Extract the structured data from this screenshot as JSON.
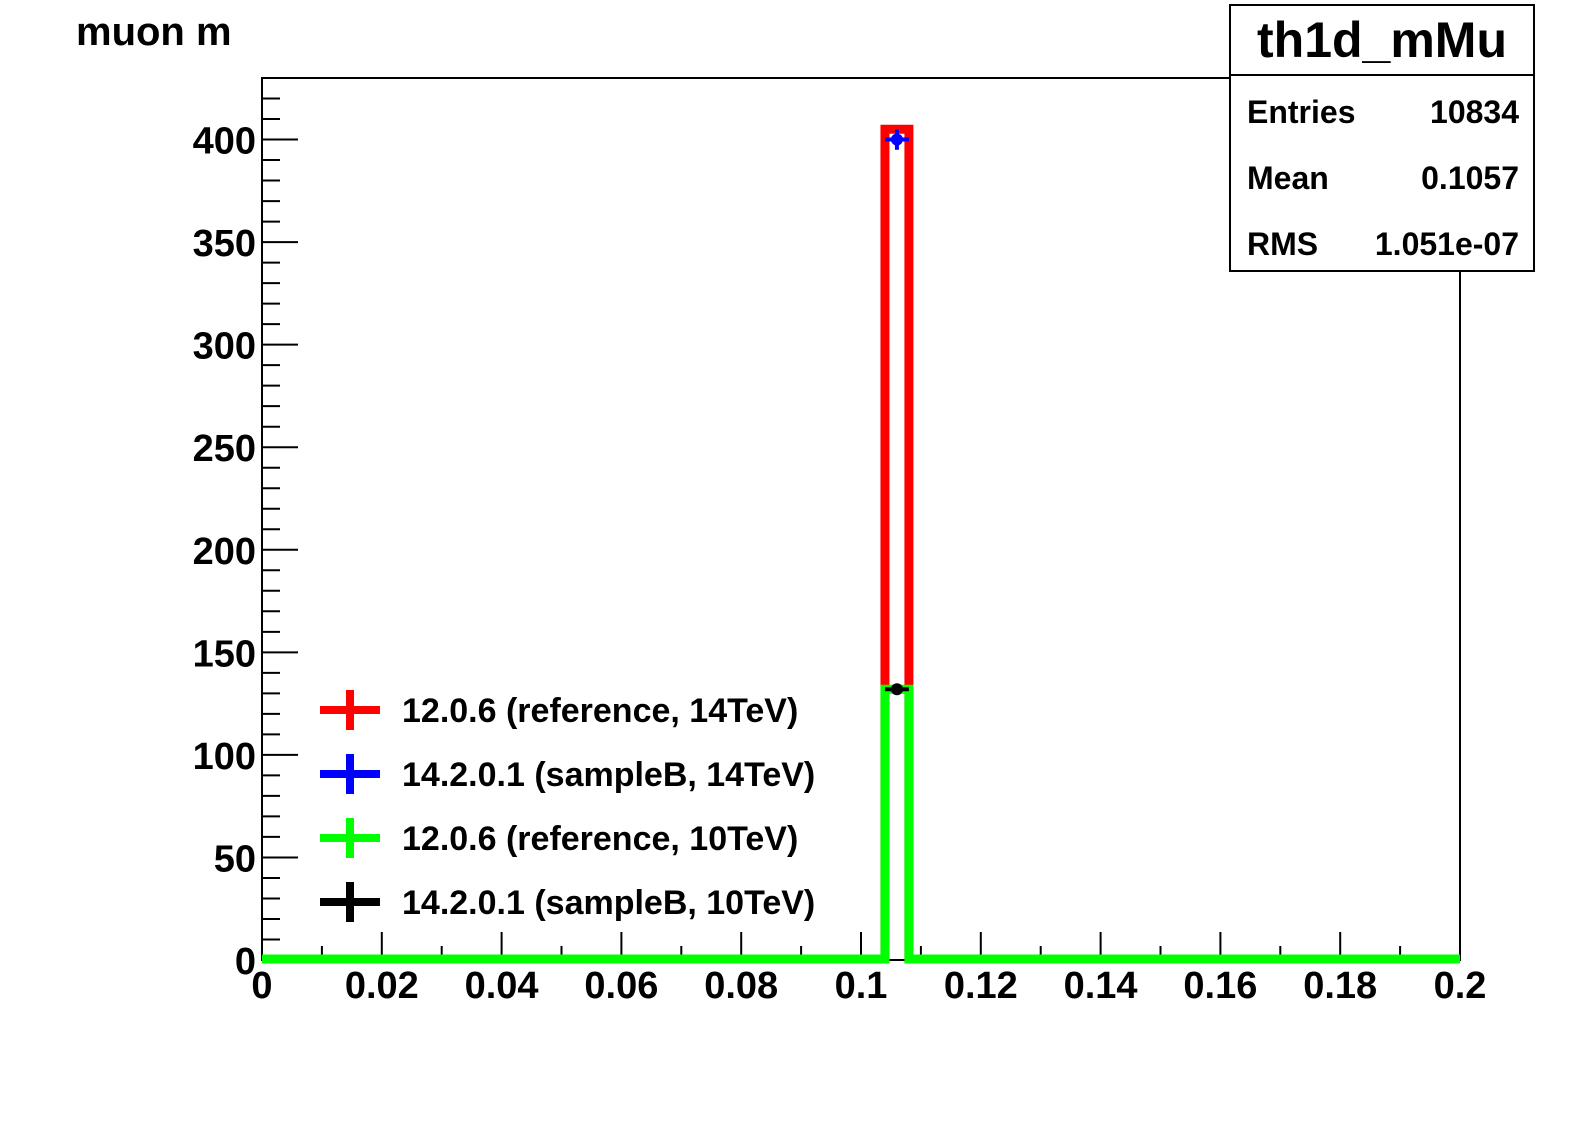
{
  "title": "muon m",
  "stats": {
    "name": "th1d_mMu",
    "rows": [
      {
        "label": "Entries",
        "value": "10834"
      },
      {
        "label": "Mean",
        "value": "0.1057"
      },
      {
        "label": "RMS",
        "value": "1.051e-07"
      }
    ]
  },
  "chart_data": {
    "type": "bar",
    "title": "muon m",
    "xlabel": "",
    "ylabel": "",
    "xlim": [
      0,
      0.2
    ],
    "ylim": [
      0,
      430
    ],
    "xticks": [
      "0",
      "0.02",
      "0.04",
      "0.06",
      "0.08",
      "0.1",
      "0.12",
      "0.14",
      "0.16",
      "0.18",
      "0.2"
    ],
    "yticks": [
      "0",
      "50",
      "100",
      "150",
      "200",
      "250",
      "300",
      "350",
      "400"
    ],
    "bin_width": 0.004,
    "legend_position": "bottom-left",
    "series": [
      {
        "name": "12.0.6 (reference, 14TeV)",
        "color": "#ff0000",
        "style": "histogram",
        "bins": [
          {
            "x0": 0.104,
            "x1": 0.108,
            "value": 405
          }
        ]
      },
      {
        "name": "14.2.0.1 (sampleB, 14TeV)",
        "color": "#0000ff",
        "style": "marker",
        "points": [
          {
            "x": 0.106,
            "value": 400,
            "err": 5
          }
        ]
      },
      {
        "name": "12.0.6 (reference, 10TeV)",
        "color": "#00ff00",
        "style": "histogram",
        "bins": [
          {
            "x0": 0.104,
            "x1": 0.108,
            "value": 132
          }
        ]
      },
      {
        "name": "14.2.0.1 (sampleB, 10TeV)",
        "color": "#000000",
        "style": "marker",
        "points": [
          {
            "x": 0.106,
            "value": 132,
            "err": 2
          }
        ]
      }
    ]
  }
}
